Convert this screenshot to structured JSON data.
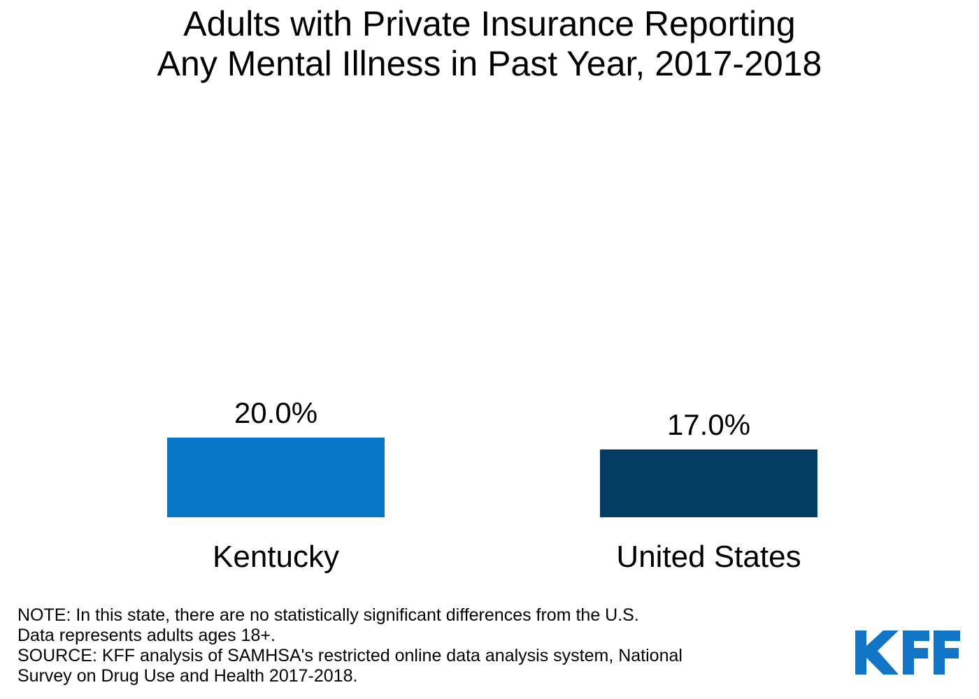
{
  "chart_data": {
    "type": "bar",
    "title": "Adults with Private Insurance Reporting Any Mental Illness in Past Year, 2017-2018",
    "title_lines": [
      "Adults with Private Insurance Reporting",
      "Any Mental Illness in Past Year, 2017-2018"
    ],
    "categories": [
      "Kentucky",
      "United States"
    ],
    "values": [
      20.0,
      17.0
    ],
    "value_labels": [
      "20.0%",
      "17.0%"
    ],
    "bar_colors": [
      "#0877C8",
      "#043B62"
    ],
    "xlabel": "",
    "ylabel": "",
    "ylim": [
      0,
      25
    ],
    "axes_visible": false,
    "grid": false,
    "legend": false
  },
  "notes": {
    "lines": [
      "NOTE: In this state, there are no statistically significant differences from the U.S.",
      "Data represents adults ages 18+.",
      "SOURCE: KFF analysis of SAMHSA's restricted online data analysis system, National",
      "Survey on Drug Use and Health 2017-2018."
    ]
  },
  "logo": {
    "text": "KFF",
    "color": "#1274C5"
  }
}
